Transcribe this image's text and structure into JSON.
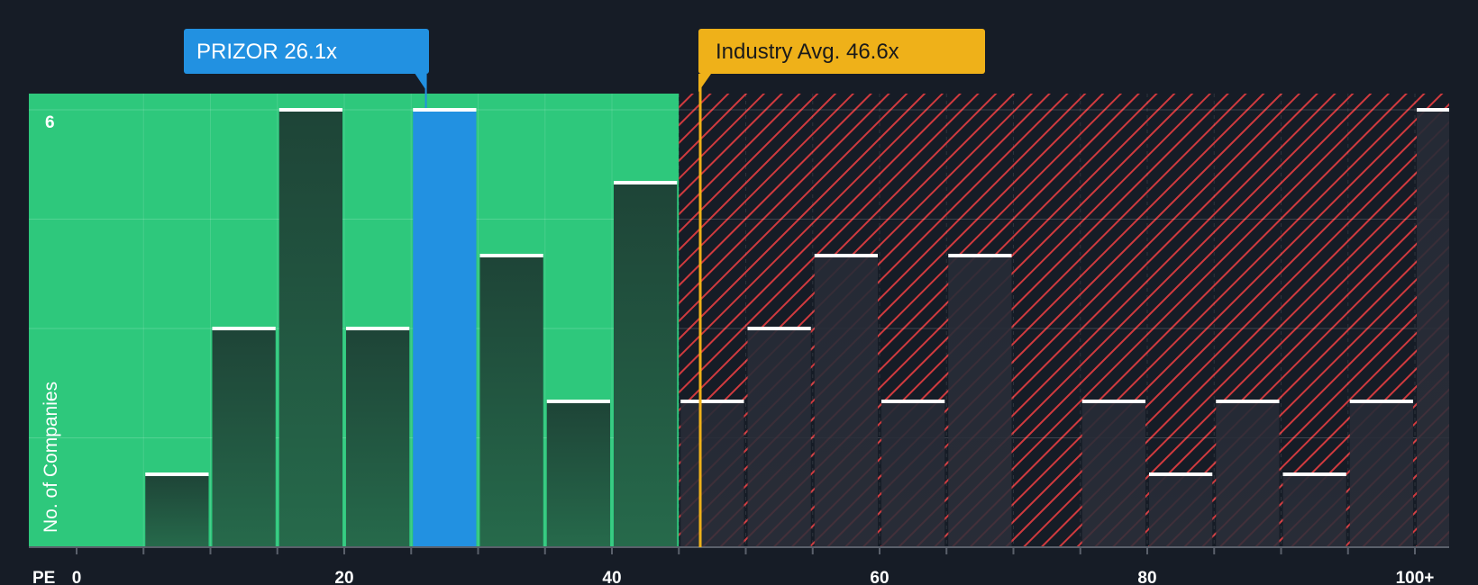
{
  "chart_data": {
    "type": "bar",
    "x_axis_label": "PE",
    "y_axis_label": "No. of Companies",
    "x_ticks": [
      {
        "value": 0,
        "label": "0"
      },
      {
        "value": 20,
        "label": "20"
      },
      {
        "value": 40,
        "label": "40"
      },
      {
        "value": 60,
        "label": "60"
      },
      {
        "value": 80,
        "label": "80"
      },
      {
        "value": 100,
        "label": "100+"
      }
    ],
    "y_ticks": [
      {
        "value": 6,
        "label": "6"
      }
    ],
    "ylim": [
      0,
      6
    ],
    "xlim": [
      0,
      102.5
    ],
    "bin_width": 5,
    "bins": [
      {
        "start": 5,
        "count": 1
      },
      {
        "start": 10,
        "count": 3
      },
      {
        "start": 15,
        "count": 6
      },
      {
        "start": 20,
        "count": 3
      },
      {
        "start": 25,
        "count": 6,
        "highlight": true
      },
      {
        "start": 30,
        "count": 4
      },
      {
        "start": 35,
        "count": 2
      },
      {
        "start": 40,
        "count": 5
      },
      {
        "start": 45,
        "count": 2
      },
      {
        "start": 50,
        "count": 3
      },
      {
        "start": 55,
        "count": 4
      },
      {
        "start": 60,
        "count": 2
      },
      {
        "start": 65,
        "count": 4
      },
      {
        "start": 75,
        "count": 2
      },
      {
        "start": 80,
        "count": 1
      },
      {
        "start": 85,
        "count": 2
      },
      {
        "start": 90,
        "count": 1
      },
      {
        "start": 95,
        "count": 2
      },
      {
        "start": 100,
        "count": 6
      }
    ],
    "company": {
      "name": "PRIZOR",
      "value": 26.1,
      "label": "PRIZOR 26.1x"
    },
    "industry_avg": {
      "value": 46.6,
      "label": "Industry Avg. 46.6x"
    },
    "undervalued_region_end": 45,
    "colors": {
      "background": "#161c26",
      "green_zone": "#2ec87c",
      "red_zone": "#d03a3e",
      "bar_in_green": "#1f4a3d",
      "bar_in_red": "#232833",
      "highlight_bar": "#2291e1",
      "company_callout": "#2291e1",
      "industry_callout": "#efb119",
      "industry_line": "#efb119",
      "bar_cap": "#ffffff"
    }
  }
}
